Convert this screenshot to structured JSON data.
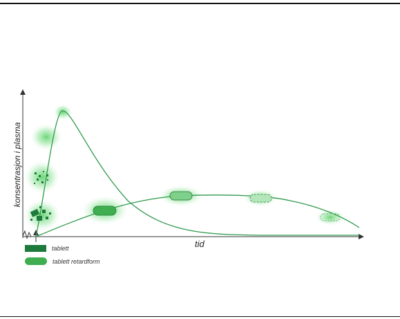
{
  "diagram": {
    "ylabel": "konsentrasjon i plasma",
    "xlabel": "tid",
    "legend": [
      {
        "label": "tablett",
        "color": "#1e7a3a",
        "shape": "rectangle"
      },
      {
        "label": "tablett retardform",
        "color": "#3fae50",
        "shape": "capsule"
      }
    ],
    "curve_color": "#2e9a4a",
    "glow_color": "#5fd86c"
  }
}
